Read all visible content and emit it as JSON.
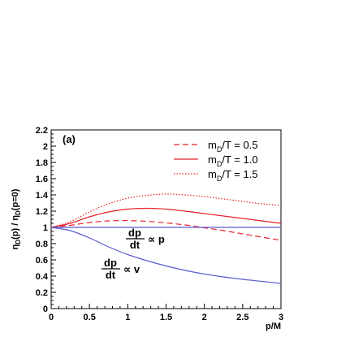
{
  "chart_data": {
    "type": "line",
    "panel_label": "(a)",
    "xlabel": "p/M",
    "ylabel": "η_D(p) / η_D(p=0)",
    "ylabel_parts": {
      "a": "η",
      "a_sub": "D",
      "b": "(p) / η",
      "b_sub": "D",
      "c": "(p=0)"
    },
    "xlim": [
      0,
      3
    ],
    "ylim": [
      0,
      2.2
    ],
    "x_ticks": [
      "0",
      "0.5",
      "1",
      "1.5",
      "2",
      "2.5",
      "3"
    ],
    "y_ticks": [
      "0",
      "0.2",
      "0.4",
      "0.6",
      "0.8",
      "1",
      "1.2",
      "1.4",
      "1.6",
      "1.8",
      "2",
      "2.2"
    ],
    "grid": false,
    "legend_position": "top-right",
    "series": [
      {
        "name": "m_D/T = 0.5",
        "legend": {
          "pre": "m",
          "sub": "D",
          "post": "/T = 0.5"
        },
        "color": "#e8202a",
        "style": "dashed",
        "x": [
          0,
          0.25,
          0.5,
          0.75,
          1.0,
          1.25,
          1.5,
          1.75,
          2.0,
          2.25,
          2.5,
          2.75,
          3.0
        ],
        "y": [
          1.0,
          1.025,
          1.06,
          1.08,
          1.083,
          1.075,
          1.055,
          1.03,
          0.995,
          0.96,
          0.92,
          0.88,
          0.84
        ]
      },
      {
        "name": "m_D/T = 1.0",
        "legend": {
          "pre": "m",
          "sub": "D",
          "post": "/T = 1.0"
        },
        "color": "#e8202a",
        "style": "solid",
        "x": [
          0,
          0.25,
          0.5,
          0.75,
          1.0,
          1.25,
          1.5,
          1.75,
          2.0,
          2.25,
          2.5,
          2.75,
          3.0
        ],
        "y": [
          1.0,
          1.05,
          1.13,
          1.19,
          1.225,
          1.235,
          1.225,
          1.2,
          1.17,
          1.14,
          1.11,
          1.08,
          1.05
        ]
      },
      {
        "name": "m_D/T = 1.5",
        "legend": {
          "pre": "m",
          "sub": "D",
          "post": "/T = 1.5"
        },
        "color": "#e8202a",
        "style": "dotted",
        "x": [
          0,
          0.25,
          0.5,
          0.75,
          1.0,
          1.25,
          1.5,
          1.75,
          2.0,
          2.25,
          2.5,
          2.75,
          3.0
        ],
        "y": [
          1.0,
          1.07,
          1.19,
          1.29,
          1.36,
          1.395,
          1.41,
          1.4,
          1.38,
          1.35,
          1.32,
          1.29,
          1.27
        ]
      },
      {
        "name": "dp/dt ∝ p",
        "color": "#5a5ad0",
        "style": "solid",
        "x": [
          0,
          3
        ],
        "y": [
          1.0,
          1.0
        ]
      },
      {
        "name": "dp/dt ∝ v",
        "color": "#5a5ad0",
        "style": "solid",
        "x": [
          0,
          0.25,
          0.5,
          0.75,
          1.0,
          1.25,
          1.5,
          1.75,
          2.0,
          2.25,
          2.5,
          2.75,
          3.0
        ],
        "y": [
          1.0,
          0.96,
          0.87,
          0.76,
          0.665,
          0.59,
          0.525,
          0.47,
          0.425,
          0.39,
          0.36,
          0.335,
          0.31
        ]
      }
    ],
    "annotations": [
      {
        "num": "dp",
        "den": "dt",
        "rel": "∝ p",
        "x": 1.0,
        "y": 0.87
      },
      {
        "num": "dp",
        "den": "dt",
        "rel": "∝ v",
        "x": 0.42,
        "y": 0.5
      }
    ]
  }
}
